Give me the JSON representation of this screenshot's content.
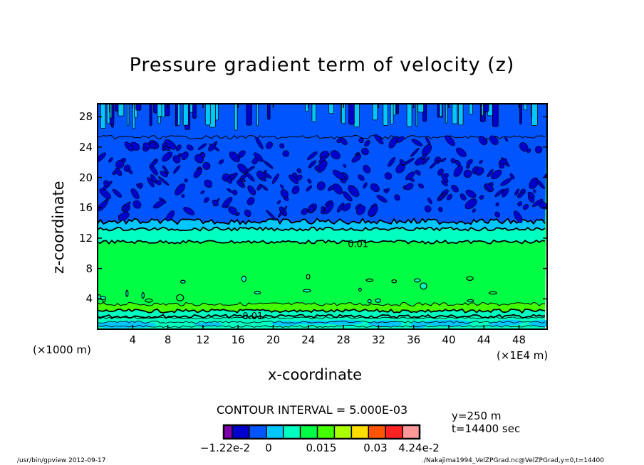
{
  "chart_data": {
    "type": "contour",
    "title": "Pressure gradient term of velocity (z)",
    "xlabel": "x-coordinate",
    "ylabel": "z-coordinate",
    "x_unit_label": "(×1E4 m)",
    "y_unit_label": "(×1000 m)",
    "xlim": [
      0,
      51.2
    ],
    "ylim": [
      0,
      29.7
    ],
    "x_ticks": [
      4,
      8,
      12,
      16,
      20,
      24,
      28,
      32,
      36,
      40,
      44,
      48
    ],
    "y_ticks": [
      4,
      8,
      12,
      16,
      20,
      24,
      28
    ],
    "contour_interval_label": "CONTOUR INTERVAL = 5.000E-03",
    "contour_labels": [
      "0.01",
      "0.01"
    ],
    "colorbar": {
      "colors": [
        "#8000b0",
        "#0000cc",
        "#0055ff",
        "#00c8ff",
        "#00ffc0",
        "#00ff44",
        "#44ff00",
        "#aaff00",
        "#ffdd00",
        "#ff5500",
        "#ff2222",
        "#ff9999"
      ],
      "tick_labels": [
        "−1.22e-2",
        "0",
        "0.015",
        "0.03",
        "4.24e-2"
      ]
    },
    "bands": [
      {
        "z": [
          0,
          1.7
        ],
        "level_index": 4,
        "note_color": "#00ffc0"
      },
      {
        "z": [
          1.7,
          2.4
        ],
        "level_index": 4
      },
      {
        "z": [
          2.4,
          3.3
        ],
        "level_index": 6
      },
      {
        "z": [
          3.3,
          11.5
        ],
        "level_index": 5
      },
      {
        "z": [
          11.5,
          13.2
        ],
        "level_index": 4
      },
      {
        "z": [
          13.2,
          14.2
        ],
        "level_index": 3
      },
      {
        "z": [
          14.2,
          25.3
        ],
        "level_index": 2
      },
      {
        "z": [
          25.3,
          29.7
        ],
        "level_index": 2
      }
    ],
    "annotations": [
      "y=250 m",
      "t=14400 sec"
    ]
  },
  "footer": {
    "left": "/usr/bin/gpview   2012-09-17",
    "right": "./Nakajima1994_VelZPGrad.nc@VelZPGrad,y=0,t=14400"
  }
}
